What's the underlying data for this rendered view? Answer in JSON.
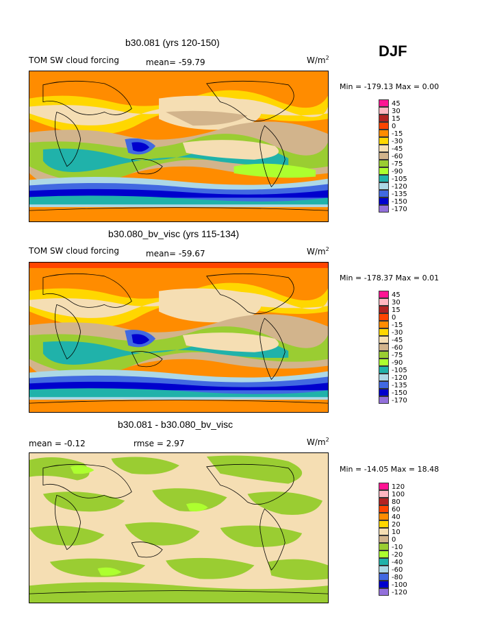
{
  "season": "DJF",
  "units": "W/m",
  "units_sup": "2",
  "panels": [
    {
      "title": "b30.081 (yrs 120-150)",
      "field": "TOM SW cloud forcing",
      "mean_label": "mean=",
      "mean_value": "-59.79",
      "minmax": "Min = -179.13 Max =    0.00"
    },
    {
      "title": "b30.080_bv_visc (yrs 115-134)",
      "field": "TOM SW cloud forcing",
      "mean_label": "mean=",
      "mean_value": "-59.67",
      "minmax": "Min = -178.37 Max =    0.01"
    },
    {
      "title": "b30.081 - b30.080_bv_visc",
      "field": "mean =   -0.12",
      "mean_label": "rmse =",
      "mean_value": "2.97",
      "minmax": "Min = -14.05 Max =  18.48"
    }
  ],
  "legend_colors": [
    "#ff1493",
    "#ffb6c1",
    "#b22222",
    "#ff4500",
    "#ff8c00",
    "#ffd700",
    "#f5deb3",
    "#d2b48c",
    "#9acd32",
    "#adff2f",
    "#20b2aa",
    "#add8e6",
    "#4169e1",
    "#0000cd",
    "#9370db"
  ],
  "legend_abs": [
    "45",
    "30",
    "15",
    "0",
    "-15",
    "-30",
    "-45",
    "-60",
    "-75",
    "-90",
    "-105",
    "-120",
    "-135",
    "-150",
    "-170"
  ],
  "legend_diff": [
    "120",
    "100",
    "80",
    "60",
    "40",
    "20",
    "10",
    "0",
    "-10",
    "-20",
    "-40",
    "-60",
    "-80",
    "-100",
    "-120"
  ]
}
